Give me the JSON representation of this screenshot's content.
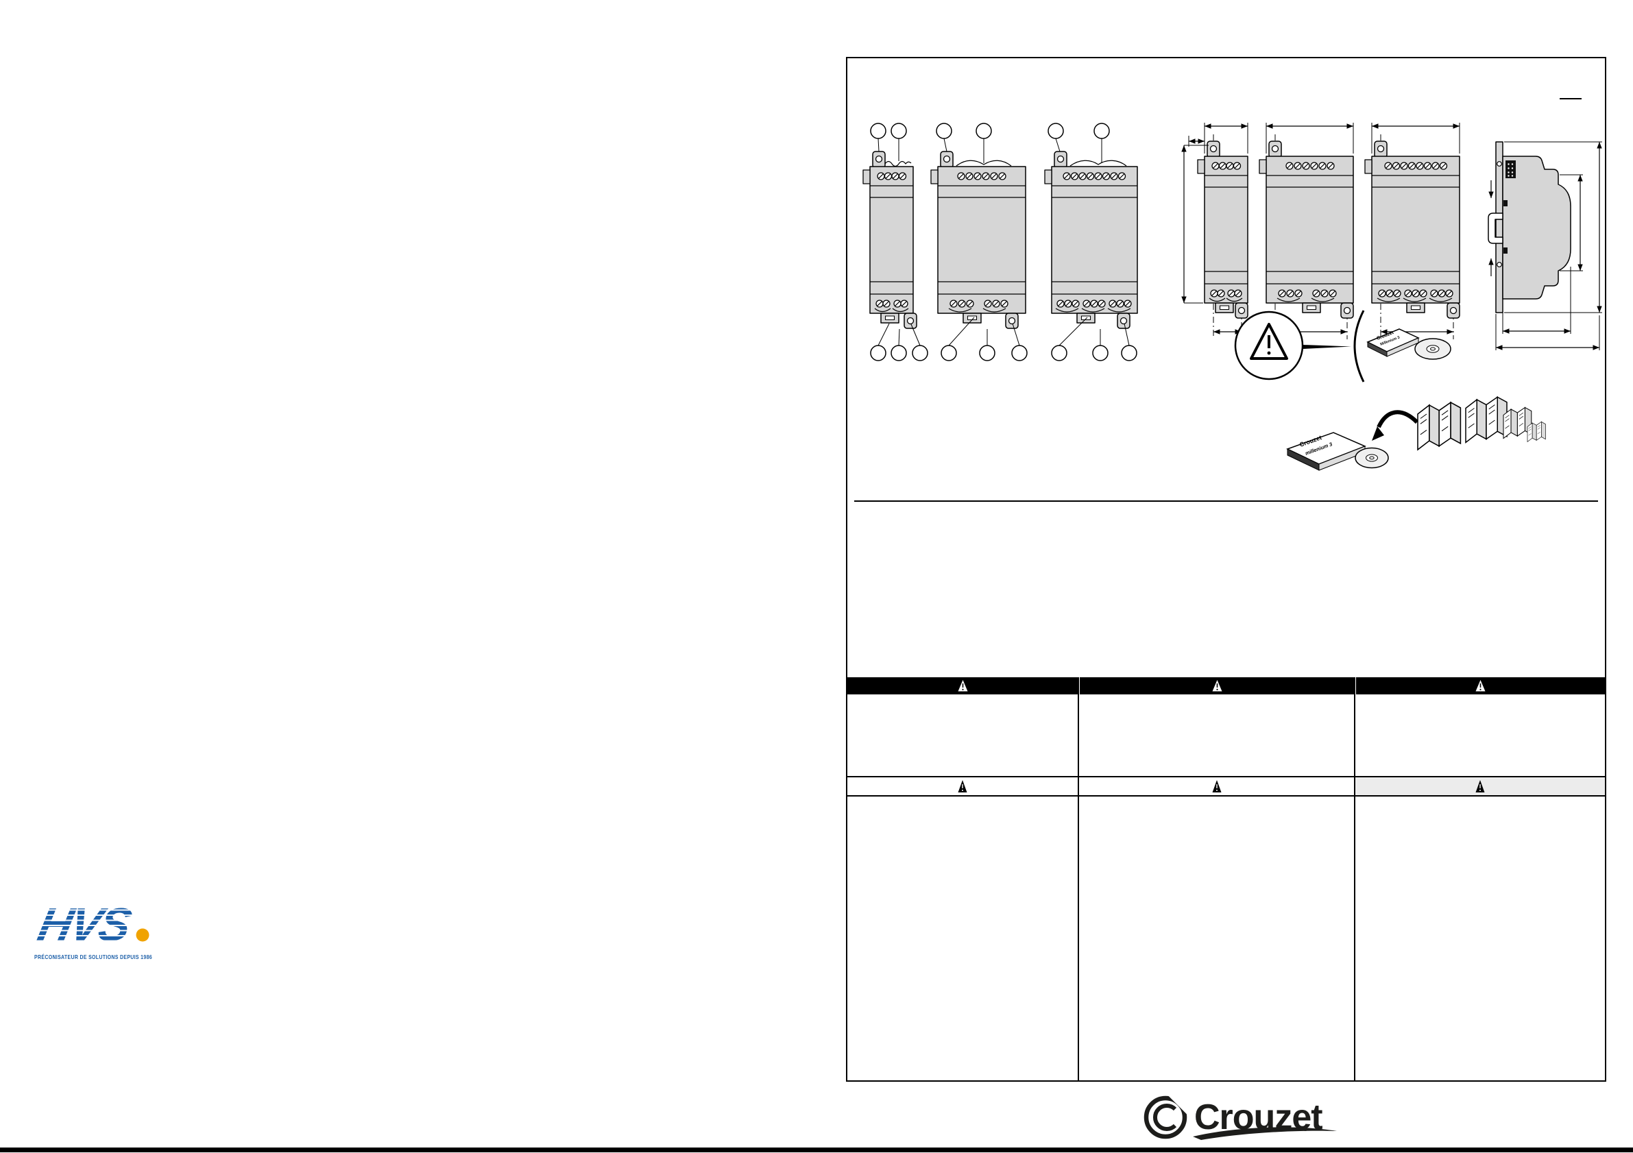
{
  "branding": {
    "hvs": {
      "name": "HVS",
      "dot": ".",
      "tagline": "PRÉCONISATEUR DE SOLUTIONS DEPUIS 1986",
      "blue": "#1c5fa8",
      "orange": "#f0a300"
    },
    "crouzet": {
      "name": "Crouzet"
    }
  },
  "illustrations": {
    "warning_callout": {
      "icon": "warning-triangle-icon"
    },
    "cd_kit": {
      "case_brand": "Crouzet",
      "case_product": "Millenium 3",
      "icon": "cd-disc-icon"
    },
    "doc_kit": {
      "case_brand": "Crouzet",
      "case_product": "millenium 3",
      "icon": "curved-arrow-icon"
    }
  },
  "diagram": {
    "front_views": [
      {
        "module": "compact",
        "top_terminals": 4,
        "bottom_terminals": 4,
        "top_callouts": 2,
        "bottom_callouts": 3
      },
      {
        "module": "standard",
        "top_terminals": 6,
        "bottom_terminals": 6,
        "top_callouts": 2,
        "bottom_callouts": 3
      },
      {
        "module": "extended",
        "top_terminals": 8,
        "bottom_terminals": 9,
        "top_callouts": 2,
        "bottom_callouts": 3
      }
    ],
    "dimension_views": [
      {
        "module": "compact",
        "top_terminals": 4,
        "bottom_terminals": 4
      },
      {
        "module": "standard",
        "top_terminals": 6,
        "bottom_terminals": 6
      },
      {
        "module": "extended",
        "top_terminals": 8,
        "bottom_terminals": 9
      },
      {
        "module": "side-profile-din-rail"
      }
    ]
  },
  "warning_table": {
    "columns": [
      {
        "header_icon": "warning-triangle-icon",
        "subheader_icon": "warning-triangle-icon"
      },
      {
        "header_icon": "warning-triangle-icon",
        "subheader_icon": "warning-triangle-icon"
      },
      {
        "header_icon": "warning-triangle-icon",
        "subheader_icon": "warning-triangle-icon"
      }
    ]
  }
}
